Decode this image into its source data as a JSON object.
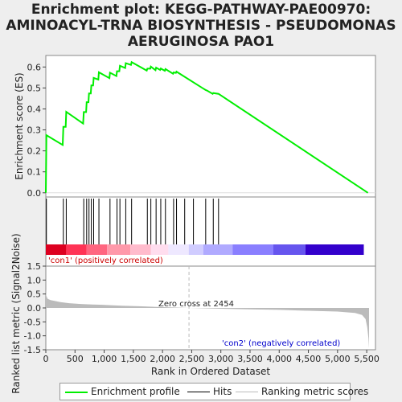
{
  "title_lines": [
    "Enrichment plot: KEGG-PATHWAY-PAE00970:",
    "AMINOACYL-TRNA BIOSYNTHESIS - PSEUDOMONAS",
    "AERUGINOSA PAO1"
  ],
  "colors": {
    "enrichment_line": "#00ee00",
    "hits": "#000000",
    "ranking_fill": "#bbbbbb",
    "positive_label": "#cc0000",
    "negative_label": "#0000cc",
    "zero_cross": "#bbbbbb"
  },
  "annotations": {
    "positive": "'con1' (positively correlated)",
    "negative": "'con2' (negatively correlated)",
    "zero_cross": "Zero cross at 2454"
  },
  "legend": {
    "enrichment": "Enrichment profile",
    "hits": "Hits",
    "ranking": "Ranking metric scores"
  },
  "chart_data": [
    {
      "type": "line",
      "name": "enrichment-profile",
      "ylabel": "Enrichment score (ES)",
      "xlim": [
        0,
        5650
      ],
      "ylim": [
        -0.02,
        0.655
      ],
      "yticks": [
        "0.0",
        "0.1",
        "0.2",
        "0.3",
        "0.4",
        "0.5",
        "0.6"
      ],
      "ytick_values": [
        0.0,
        0.1,
        0.2,
        0.3,
        0.4,
        0.5,
        0.6
      ],
      "x": [
        0,
        10,
        290,
        300,
        340,
        350,
        640,
        650,
        690,
        700,
        730,
        740,
        770,
        780,
        810,
        820,
        900,
        910,
        1090,
        1100,
        1210,
        1220,
        1260,
        1270,
        1360,
        1370,
        1460,
        1470,
        1730,
        1740,
        1790,
        1800,
        1880,
        1890,
        1960,
        1970,
        2040,
        2050,
        2180,
        2190,
        2230,
        2240,
        2740,
        2760,
        2860,
        2870,
        2960,
        5520
      ],
      "y": [
        0.0,
        0.275,
        0.228,
        0.315,
        0.315,
        0.386,
        0.33,
        0.385,
        0.385,
        0.432,
        0.432,
        0.474,
        0.474,
        0.512,
        0.512,
        0.548,
        0.54,
        0.575,
        0.547,
        0.573,
        0.557,
        0.58,
        0.58,
        0.606,
        0.595,
        0.618,
        0.61,
        0.623,
        0.583,
        0.592,
        0.592,
        0.602,
        0.585,
        0.597,
        0.586,
        0.593,
        0.582,
        0.59,
        0.568,
        0.574,
        0.572,
        0.578,
        0.49,
        0.488,
        0.472,
        0.476,
        0.472,
        0.0
      ],
      "grid": false
    },
    {
      "type": "scatter",
      "name": "hits",
      "x": [
        10,
        300,
        350,
        650,
        700,
        740,
        780,
        820,
        910,
        1100,
        1220,
        1270,
        1370,
        1470,
        1740,
        1800,
        1890,
        1970,
        2050,
        2190,
        2240,
        2380,
        2530,
        2740,
        2870,
        2960
      ]
    },
    {
      "type": "heatmap",
      "name": "ranked-list-bar",
      "colors": [
        "#dd0020",
        "#ff3355",
        "#ff6680",
        "#ff99aa",
        "#ffbbcc",
        "#ffddee",
        "#eee8ff",
        "#d0ccff",
        "#b0aaff",
        "#8a7fff",
        "#6655ee",
        "#3300cc"
      ],
      "x_edges": [
        0,
        350,
        700,
        1050,
        1450,
        1800,
        2100,
        2450,
        2700,
        3200,
        3900,
        4450,
        5450,
        5520
      ]
    },
    {
      "type": "area",
      "name": "ranking-metric-scores",
      "xlabel": "Rank in Ordered Dataset",
      "ylabel": "Ranked list metric (Signal2Noise)",
      "xlim": [
        0,
        5650
      ],
      "ylim": [
        -1.5,
        1.5
      ],
      "xticks": [
        "0",
        "500",
        "1,000",
        "1,500",
        "2,000",
        "2,500",
        "3,000",
        "3,500",
        "4,000",
        "4,500",
        "5,000",
        "5,500"
      ],
      "xtick_values": [
        0,
        500,
        1000,
        1500,
        2000,
        2500,
        3000,
        3500,
        4000,
        4500,
        5000,
        5500
      ],
      "yticks": [
        "1.5",
        "1.0",
        "0.5",
        "0.0",
        "-0.5",
        "-1.0",
        "-1.5"
      ],
      "ytick_values": [
        1.5,
        1.0,
        0.5,
        0.0,
        -0.5,
        -1.0,
        -1.5
      ],
      "x": [
        0,
        5,
        30,
        80,
        150,
        250,
        400,
        600,
        800,
        1000,
        1300,
        1600,
        2000,
        2454,
        3000,
        3500,
        4000,
        4500,
        5000,
        5300,
        5420,
        5480,
        5510,
        5530,
        5540
      ],
      "y": [
        0.72,
        0.45,
        0.33,
        0.28,
        0.25,
        0.21,
        0.17,
        0.14,
        0.12,
        0.11,
        0.08,
        0.06,
        0.03,
        0.0,
        -0.03,
        -0.05,
        -0.07,
        -0.1,
        -0.13,
        -0.18,
        -0.25,
        -0.4,
        -0.7,
        -1.1,
        -1.45
      ]
    }
  ]
}
